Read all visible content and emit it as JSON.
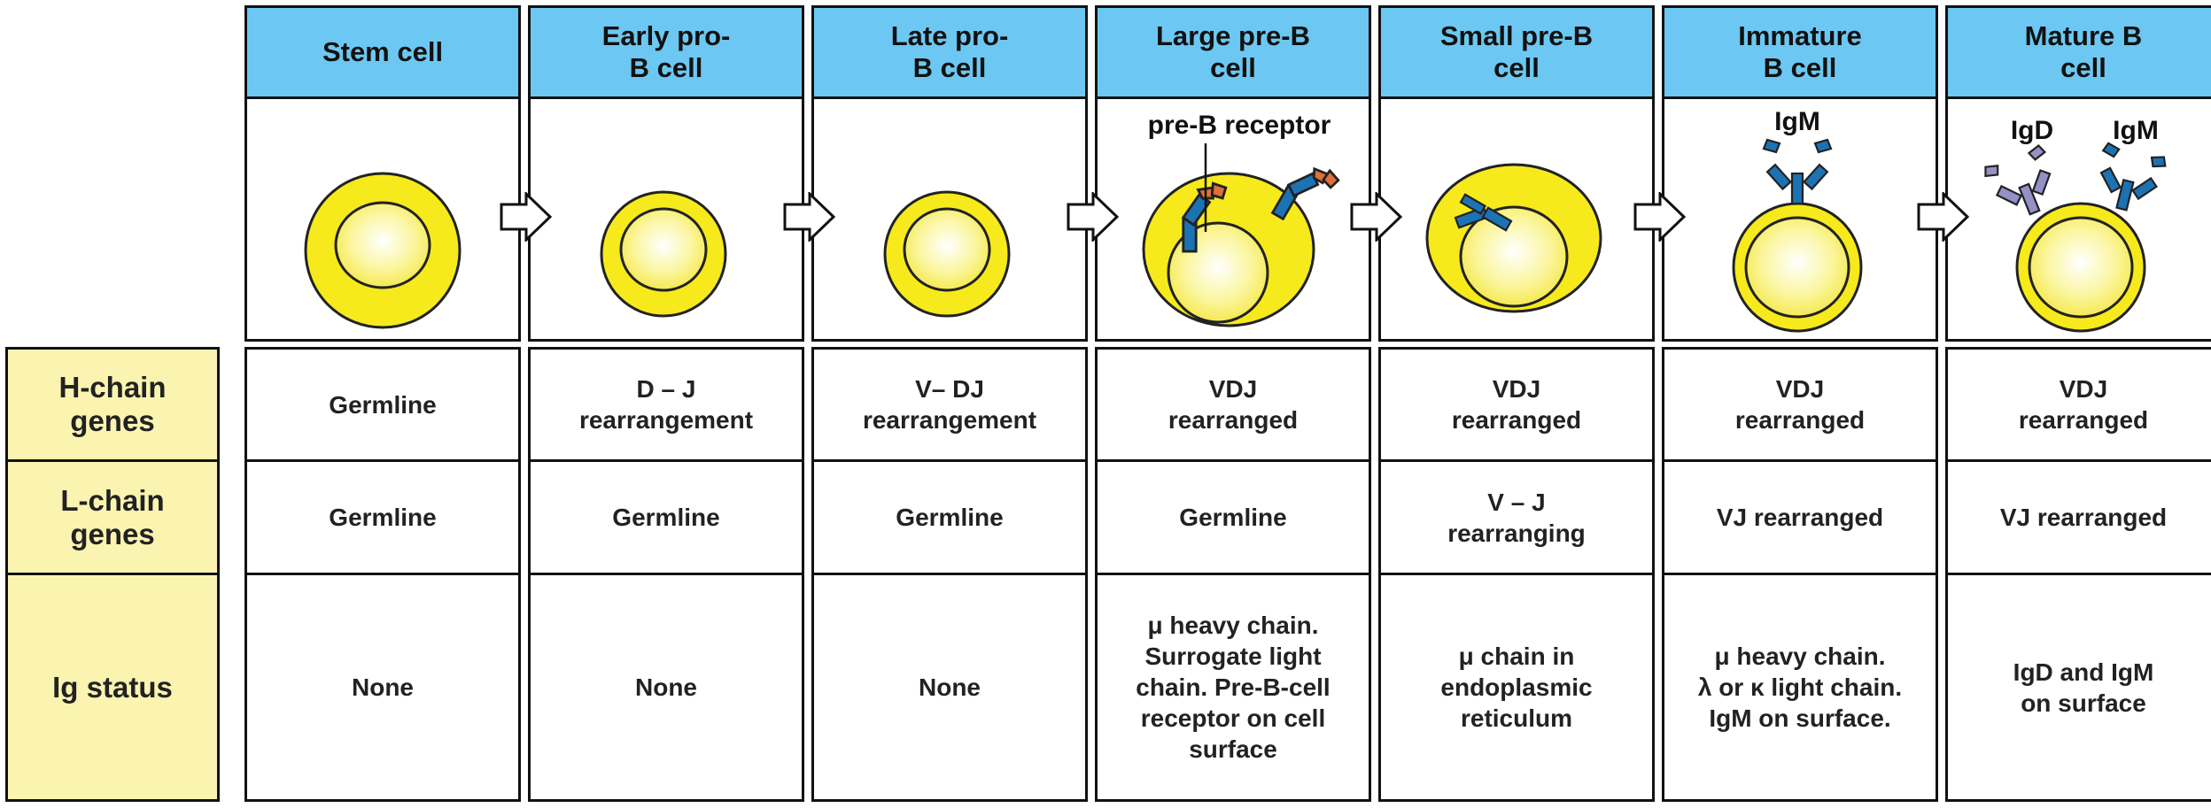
{
  "stages": [
    {
      "name": "Stem cell",
      "h_chain": "Germline",
      "l_chain": "Germline",
      "ig_status": "None",
      "receptor_labels": []
    },
    {
      "name": "Early pro-\nB cell",
      "h_chain": "D – J\nrearrangement",
      "l_chain": "Germline",
      "ig_status": "None",
      "receptor_labels": []
    },
    {
      "name": "Late pro-\nB cell",
      "h_chain": "V– DJ\nrearrangement",
      "l_chain": "Germline",
      "ig_status": "None",
      "receptor_labels": []
    },
    {
      "name": "Large pre-B\ncell",
      "h_chain": "VDJ\nrearranged",
      "l_chain": "Germline",
      "ig_status": "μ heavy chain.\nSurrogate light\nchain. Pre-B-cell\nreceptor on cell\nsurface",
      "receptor_labels": [
        "pre-B receptor"
      ]
    },
    {
      "name": "Small pre-B\ncell",
      "h_chain": "VDJ\nrearranged",
      "l_chain": "V – J\nrearranging",
      "ig_status": "μ chain in\nendoplasmic\nreticulum",
      "receptor_labels": []
    },
    {
      "name": "Immature\nB cell",
      "h_chain": "VDJ\nrearranged",
      "l_chain": "VJ  rearranged",
      "ig_status": "μ heavy chain.\nλ or κ light chain.\nIgM on surface.",
      "receptor_labels": [
        "IgM"
      ]
    },
    {
      "name": "Mature B\ncell",
      "h_chain": "VDJ\nrearranged",
      "l_chain": "VJ  rearranged",
      "ig_status": "IgD and IgM\non surface",
      "receptor_labels": [
        "IgD",
        "IgM"
      ]
    }
  ],
  "row_labels": {
    "h_chain": "H-chain\ngenes",
    "l_chain": "L-chain\ngenes",
    "ig_status": "Ig status"
  },
  "colors": {
    "header": "#6cc8f2",
    "row_label": "#fbf4b0",
    "cell_yellow": "#f7ea1c",
    "igm_blue": "#1c73b4",
    "pre_b_orange": "#e0703a",
    "igd_purple": "#9590c6"
  }
}
